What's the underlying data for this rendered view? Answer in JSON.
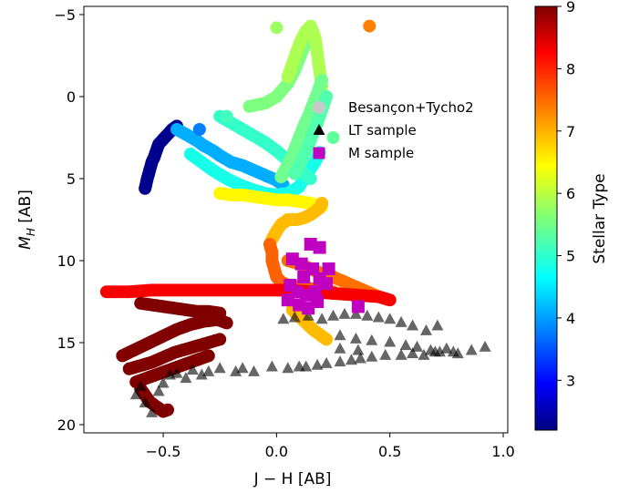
{
  "chart_data": {
    "type": "scatter",
    "xlabel": "J − H [AB]",
    "ylabel_main": "M",
    "ylabel_sub": "H",
    "ylabel_unit": " [AB]",
    "xlim": [
      -0.85,
      1.02
    ],
    "ylim": [
      20.5,
      -5.5
    ],
    "y_inverted": true,
    "x_ticks": [
      -0.5,
      0.0,
      0.5,
      1.0
    ],
    "x_tick_labels": [
      "−0.5",
      "0.0",
      "0.5",
      "1.0"
    ],
    "y_ticks": [
      -5,
      0,
      5,
      10,
      15,
      20
    ],
    "y_tick_labels": [
      "−5",
      "0",
      "5",
      "10",
      "15",
      "20"
    ],
    "legend_position": "upper-right",
    "legend": [
      {
        "label": "Besançon+Tycho2",
        "marker": "circle",
        "color": "#c8c8c8"
      },
      {
        "label": "LT sample",
        "marker": "triangle",
        "color": "#000000"
      },
      {
        "label": "M sample",
        "marker": "square",
        "color": "#c000c0"
      }
    ],
    "colorbar": {
      "label": "Stellar Type",
      "range": [
        2.2,
        9.0
      ],
      "ticks": [
        3,
        4,
        5,
        6,
        7,
        8,
        9
      ],
      "tick_labels": [
        "3",
        "4",
        "5",
        "6",
        "7",
        "8",
        "9"
      ],
      "colormap": "jet"
    },
    "besancon_tracks": [
      {
        "x": [
          -0.58,
          -0.57,
          -0.56,
          -0.55,
          -0.54,
          -0.53,
          -0.52,
          -0.5,
          -0.48,
          -0.46,
          -0.44
        ],
        "y": [
          5.6,
          5.0,
          4.5,
          4.0,
          3.7,
          3.3,
          2.9,
          2.6,
          2.3,
          2.0,
          1.8
        ],
        "stype": 2.3
      },
      {
        "x": [
          -0.44,
          -0.4,
          -0.35,
          -0.32,
          -0.28,
          -0.25,
          -0.2,
          -0.15,
          -0.1,
          -0.05,
          0.0,
          0.03
        ],
        "y": [
          2.0,
          2.3,
          2.7,
          3.0,
          3.3,
          3.6,
          4.0,
          4.2,
          4.5,
          4.8,
          5.1,
          5.4
        ],
        "stype": 4.2
      },
      {
        "x": [
          -0.38,
          -0.33,
          -0.28,
          -0.22,
          -0.16,
          -0.1,
          -0.05,
          0.0,
          0.05,
          0.1,
          0.13,
          0.17,
          0.19
        ],
        "y": [
          3.5,
          4.0,
          4.5,
          5.0,
          5.4,
          5.7,
          5.9,
          6.0,
          5.9,
          5.5,
          4.8,
          4.0,
          3.4
        ],
        "stype": 4.9
      },
      {
        "x": [
          -0.25,
          -0.2,
          -0.15,
          -0.1,
          -0.05,
          0.0,
          0.05,
          0.1,
          0.15
        ],
        "y": [
          1.2,
          1.6,
          2.0,
          2.4,
          2.8,
          3.3,
          3.9,
          4.5,
          5.0
        ],
        "stype": 5.1
      },
      {
        "x": [
          -0.12,
          -0.05,
          0.0,
          0.05,
          0.08,
          0.1,
          0.12,
          0.14,
          0.16
        ],
        "y": [
          0.6,
          0.4,
          0.0,
          -0.8,
          -1.6,
          -2.3,
          -3.0,
          -3.6,
          -4.0
        ],
        "stype": 5.6
      },
      {
        "x": [
          0.05,
          0.07,
          0.09,
          0.11,
          0.13,
          0.15,
          0.17,
          0.18,
          0.19,
          0.2
        ],
        "y": [
          -1.2,
          -2.0,
          -2.8,
          -3.5,
          -4.0,
          -4.3,
          -3.6,
          -2.6,
          -1.6,
          -0.6
        ],
        "stype": 5.9
      },
      {
        "x": [
          0.2,
          0.18,
          0.16,
          0.14,
          0.12,
          0.1,
          0.08,
          0.06,
          0.04,
          0.02
        ],
        "y": [
          -1.0,
          -0.2,
          0.5,
          1.2,
          1.8,
          2.5,
          3.2,
          3.9,
          4.4,
          4.9
        ],
        "stype": 5.5
      },
      {
        "x": [
          0.22,
          0.2,
          0.18,
          0.16,
          0.14,
          0.12,
          0.1,
          0.08
        ],
        "y": [
          0.0,
          0.8,
          1.6,
          2.3,
          3.0,
          3.6,
          4.2,
          4.7
        ],
        "stype": 5.3
      },
      {
        "x": [
          -0.25,
          -0.2,
          -0.15,
          -0.1,
          -0.05,
          0.0,
          0.05,
          0.1,
          0.15,
          0.2
        ],
        "y": [
          5.9,
          6.0,
          6.0,
          6.1,
          6.2,
          6.3,
          6.3,
          6.4,
          6.5,
          6.7
        ],
        "stype": 6.5
      },
      {
        "x": [
          0.2,
          0.19,
          0.17,
          0.15,
          0.12,
          0.09,
          0.05,
          0.02,
          0.0,
          -0.02
        ],
        "y": [
          6.5,
          6.8,
          7.0,
          7.2,
          7.4,
          7.5,
          7.5,
          7.8,
          8.2,
          8.7
        ],
        "stype": 6.9
      },
      {
        "x": [
          -0.03,
          -0.02,
          -0.02,
          -0.01,
          0.0,
          0.02,
          0.05,
          0.1,
          0.15,
          0.2,
          0.25
        ],
        "y": [
          9.0,
          9.5,
          10.0,
          10.5,
          11.0,
          11.3,
          11.5,
          11.6,
          11.7,
          11.8,
          11.9
        ],
        "stype": 7.5
      },
      {
        "x": [
          0.05,
          0.1,
          0.15,
          0.2,
          0.25,
          0.3,
          0.35,
          0.4,
          0.45
        ],
        "y": [
          10.0,
          10.2,
          10.5,
          10.8,
          11.0,
          11.3,
          11.6,
          11.9,
          12.2
        ],
        "stype": 7.4
      },
      {
        "x": [
          0.07,
          0.1,
          0.13,
          0.16,
          0.19,
          0.22
        ],
        "y": [
          13.0,
          13.4,
          13.8,
          14.2,
          14.5,
          14.8
        ],
        "stype": 6.9
      },
      {
        "x": [
          -0.75,
          -0.65,
          -0.55,
          -0.45,
          -0.35,
          -0.25,
          -0.15,
          -0.05,
          0.05,
          0.15,
          0.25,
          0.35,
          0.45,
          0.5
        ],
        "y": [
          11.9,
          11.9,
          11.8,
          11.8,
          11.8,
          11.8,
          11.8,
          11.8,
          11.8,
          11.9,
          12.0,
          12.1,
          12.2,
          12.4
        ],
        "stype": 8.2
      },
      {
        "x": [
          -0.6,
          -0.55,
          -0.5,
          -0.45,
          -0.4,
          -0.35,
          -0.3,
          -0.25
        ],
        "y": [
          12.6,
          12.7,
          12.8,
          12.9,
          13.0,
          13.1,
          13.1,
          13.2
        ],
        "stype": 9.0
      },
      {
        "x": [
          -0.68,
          -0.62,
          -0.56,
          -0.5,
          -0.44,
          -0.38,
          -0.32,
          -0.26,
          -0.22
        ],
        "y": [
          15.8,
          15.4,
          15.0,
          14.6,
          14.2,
          13.9,
          13.7,
          13.6,
          13.8
        ],
        "stype": 9.0
      },
      {
        "x": [
          -0.65,
          -0.6,
          -0.55,
          -0.5,
          -0.45,
          -0.4,
          -0.35,
          -0.3,
          -0.25
        ],
        "y": [
          16.6,
          16.4,
          16.2,
          15.9,
          15.6,
          15.4,
          15.2,
          15.0,
          14.8
        ],
        "stype": 9.0
      },
      {
        "x": [
          -0.62,
          -0.58,
          -0.54,
          -0.5,
          -0.46,
          -0.42,
          -0.38,
          -0.34,
          -0.3
        ],
        "y": [
          17.4,
          17.2,
          17.0,
          16.8,
          16.6,
          16.4,
          16.2,
          16.0,
          15.8
        ],
        "stype": 9.0
      },
      {
        "x": [
          -0.6,
          -0.58,
          -0.56,
          -0.53,
          -0.5,
          -0.48
        ],
        "y": [
          17.8,
          18.2,
          18.6,
          18.9,
          19.2,
          19.1
        ],
        "stype": 9.0
      }
    ],
    "besancon_points": [
      {
        "x": 0.41,
        "y": -4.3,
        "stype": 7.3
      },
      {
        "x": 0.0,
        "y": -4.2,
        "stype": 5.8
      },
      {
        "x": -0.22,
        "y": 1.2,
        "stype": 5.2
      },
      {
        "x": 0.25,
        "y": 2.5,
        "stype": 5.4
      },
      {
        "x": -0.34,
        "y": 2.0,
        "stype": 3.9
      },
      {
        "x": -0.52,
        "y": 19.0,
        "stype": 9.0
      }
    ],
    "lt_sample": [
      {
        "x": -0.62,
        "y": 18.2
      },
      {
        "x": -0.6,
        "y": 17.7
      },
      {
        "x": -0.58,
        "y": 18.7
      },
      {
        "x": -0.55,
        "y": 19.3
      },
      {
        "x": -0.52,
        "y": 18.0
      },
      {
        "x": -0.5,
        "y": 17.5
      },
      {
        "x": -0.47,
        "y": 17.0
      },
      {
        "x": -0.44,
        "y": 16.9
      },
      {
        "x": -0.4,
        "y": 17.2
      },
      {
        "x": -0.37,
        "y": 16.7
      },
      {
        "x": -0.33,
        "y": 17.0
      },
      {
        "x": -0.3,
        "y": 16.8
      },
      {
        "x": -0.25,
        "y": 16.6
      },
      {
        "x": -0.18,
        "y": 16.8
      },
      {
        "x": -0.15,
        "y": 16.6
      },
      {
        "x": -0.1,
        "y": 16.8
      },
      {
        "x": -0.02,
        "y": 16.5
      },
      {
        "x": 0.05,
        "y": 16.6
      },
      {
        "x": 0.1,
        "y": 16.5
      },
      {
        "x": 0.13,
        "y": 16.5
      },
      {
        "x": 0.18,
        "y": 16.4
      },
      {
        "x": 0.22,
        "y": 16.3
      },
      {
        "x": 0.28,
        "y": 16.2
      },
      {
        "x": 0.33,
        "y": 16.1
      },
      {
        "x": 0.37,
        "y": 16.0
      },
      {
        "x": 0.42,
        "y": 15.9
      },
      {
        "x": 0.48,
        "y": 15.8
      },
      {
        "x": 0.55,
        "y": 15.8
      },
      {
        "x": 0.6,
        "y": 15.7
      },
      {
        "x": 0.65,
        "y": 15.8
      },
      {
        "x": 0.72,
        "y": 15.6
      },
      {
        "x": 0.78,
        "y": 15.6
      },
      {
        "x": 0.86,
        "y": 15.5
      },
      {
        "x": 0.92,
        "y": 15.3
      },
      {
        "x": 0.08,
        "y": 13.5
      },
      {
        "x": 0.14,
        "y": 13.4
      },
      {
        "x": 0.2,
        "y": 13.6
      },
      {
        "x": 0.25,
        "y": 13.4
      },
      {
        "x": 0.3,
        "y": 13.3
      },
      {
        "x": 0.35,
        "y": 13.3
      },
      {
        "x": 0.4,
        "y": 13.4
      },
      {
        "x": 0.45,
        "y": 13.5
      },
      {
        "x": 0.5,
        "y": 13.6
      },
      {
        "x": 0.55,
        "y": 13.8
      },
      {
        "x": 0.6,
        "y": 14.0
      },
      {
        "x": 0.66,
        "y": 14.3
      },
      {
        "x": 0.71,
        "y": 14.0
      },
      {
        "x": 0.28,
        "y": 14.6
      },
      {
        "x": 0.35,
        "y": 14.8
      },
      {
        "x": 0.42,
        "y": 14.9
      },
      {
        "x": 0.5,
        "y": 15.0
      },
      {
        "x": 0.57,
        "y": 15.2
      },
      {
        "x": 0.62,
        "y": 15.3
      },
      {
        "x": 0.28,
        "y": 15.4
      },
      {
        "x": 0.36,
        "y": 15.5
      },
      {
        "x": 0.68,
        "y": 15.5
      },
      {
        "x": 0.7,
        "y": 15.6
      },
      {
        "x": 0.75,
        "y": 15.4
      },
      {
        "x": 0.8,
        "y": 15.7
      },
      {
        "x": 0.03,
        "y": 13.6
      }
    ],
    "m_sample": [
      {
        "x": 0.15,
        "y": 9.0
      },
      {
        "x": 0.19,
        "y": 9.2
      },
      {
        "x": 0.07,
        "y": 9.9
      },
      {
        "x": 0.11,
        "y": 10.2
      },
      {
        "x": 0.16,
        "y": 10.5
      },
      {
        "x": 0.23,
        "y": 10.5
      },
      {
        "x": 0.12,
        "y": 11.0
      },
      {
        "x": 0.19,
        "y": 11.1
      },
      {
        "x": 0.06,
        "y": 11.5
      },
      {
        "x": 0.09,
        "y": 11.9
      },
      {
        "x": 0.13,
        "y": 12.1
      },
      {
        "x": 0.17,
        "y": 11.9
      },
      {
        "x": 0.05,
        "y": 12.4
      },
      {
        "x": 0.1,
        "y": 12.7
      },
      {
        "x": 0.14,
        "y": 12.9
      },
      {
        "x": 0.18,
        "y": 12.5
      },
      {
        "x": 0.36,
        "y": 12.8
      },
      {
        "x": 0.22,
        "y": 11.4
      }
    ]
  }
}
